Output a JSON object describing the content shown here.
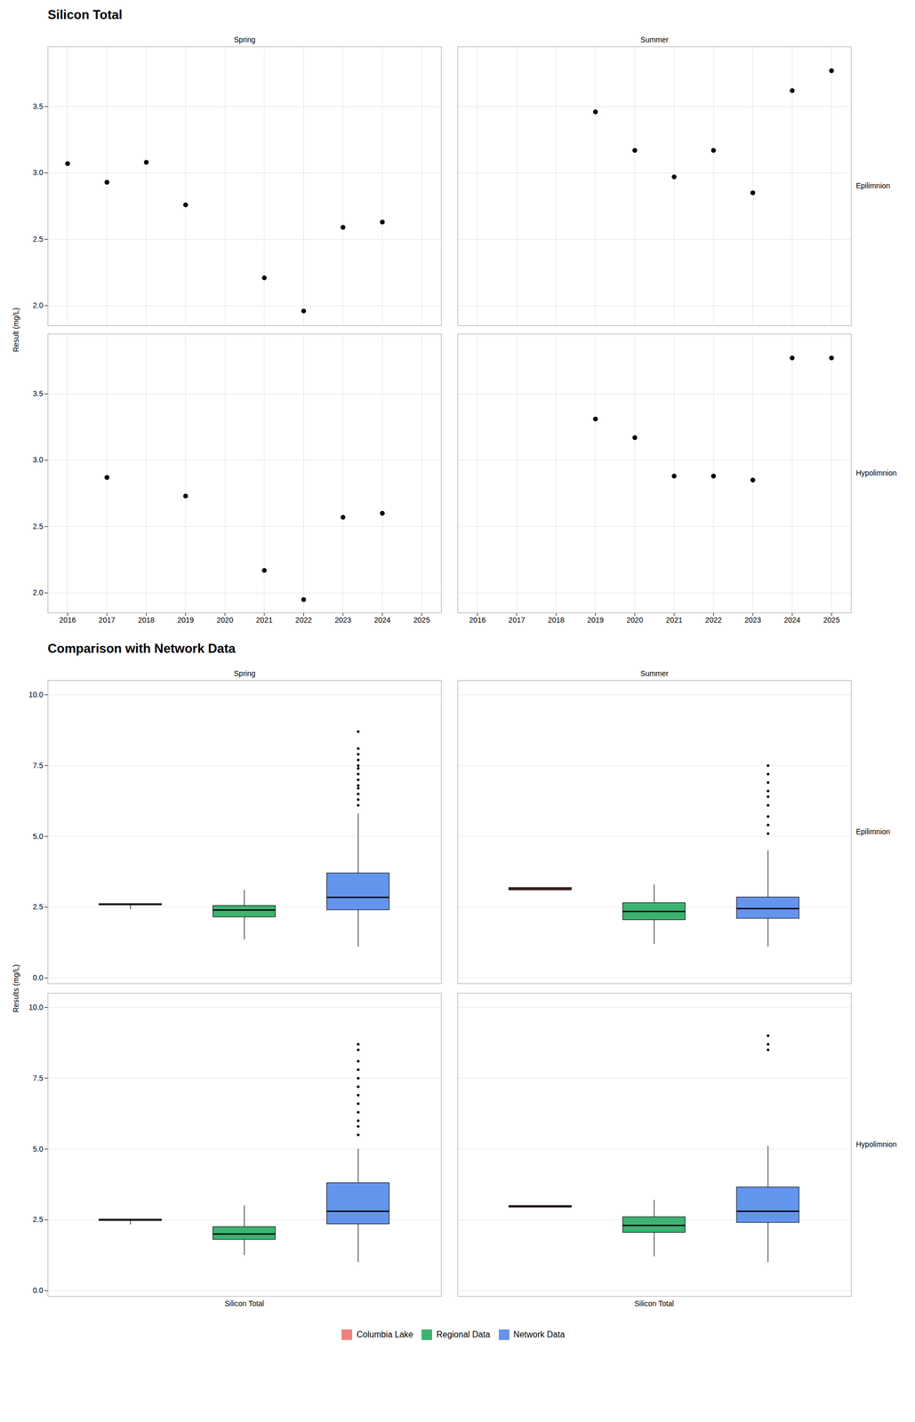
{
  "chart_data": [
    {
      "type": "scatter",
      "title": "Silicon Total",
      "ylabel": "Result (mg/L)",
      "columns": [
        "Spring",
        "Summer"
      ],
      "rows": [
        "Epilimnion",
        "Hypolimnion"
      ],
      "color": "black",
      "panels": [
        {
          "column": "Spring",
          "row": "Epilimnion",
          "x": [
            2016,
            2017,
            2018,
            2019,
            2021,
            2022,
            2023,
            2024
          ],
          "y": [
            3.07,
            2.93,
            3.08,
            2.76,
            2.21,
            1.96,
            2.59,
            2.63
          ]
        },
        {
          "column": "Summer",
          "row": "Epilimnion",
          "x": [
            2019,
            2020,
            2021,
            2022,
            2023,
            2024,
            2025
          ],
          "y": [
            3.46,
            3.17,
            2.97,
            3.17,
            2.85,
            3.62,
            3.77
          ]
        },
        {
          "column": "Spring",
          "row": "Hypolimnion",
          "x": [
            2017,
            2019,
            2021,
            2022,
            2023,
            2024
          ],
          "y": [
            2.87,
            2.73,
            2.17,
            1.95,
            2.57,
            2.6
          ]
        },
        {
          "column": "Summer",
          "row": "Hypolimnion",
          "x": [
            2019,
            2020,
            2021,
            2022,
            2023,
            2024,
            2025
          ],
          "y": [
            3.31,
            3.17,
            2.88,
            2.88,
            2.85,
            3.77,
            3.77
          ]
        }
      ],
      "xlim": [
        2015.5,
        2025.5
      ],
      "xticks": [
        2016,
        2017,
        2018,
        2019,
        2020,
        2021,
        2022,
        2023,
        2024,
        2025
      ],
      "ylim": [
        1.85,
        3.95
      ],
      "yticks": [
        {
          "value": 2,
          "label": "2.0"
        },
        2.5,
        {
          "value": 3,
          "label": "3.0"
        },
        3.5
      ],
      "grid": true
    },
    {
      "type": "box",
      "title": "Comparison with Network Data",
      "ylabel": "Results (mg/L)",
      "categories": [
        "Silicon Total"
      ],
      "columns": [
        "Spring",
        "Summer"
      ],
      "rows": [
        "Epilimnion",
        "Hypolimnion"
      ],
      "series": [
        {
          "name": "Columbia Lake",
          "color": "#F08080",
          "boxes": [
            {
              "column": "Spring",
              "row": "Epilimnion",
              "med": 2.6,
              "q1": 2.57,
              "q3": 2.62,
              "whisk_lo": 2.42,
              "whisk_hi": 2.62,
              "outliers": []
            },
            {
              "column": "Summer",
              "row": "Epilimnion",
              "med": 3.15,
              "q1": 3.1,
              "q3": 3.19,
              "whisk_lo": 3.1,
              "whisk_hi": 3.19,
              "outliers": []
            },
            {
              "column": "Spring",
              "row": "Hypolimnion",
              "med": 2.5,
              "q1": 2.47,
              "q3": 2.52,
              "whisk_lo": 2.33,
              "whisk_hi": 2.52,
              "outliers": []
            },
            {
              "column": "Summer",
              "row": "Hypolimnion",
              "med": 2.97,
              "q1": 2.94,
              "q3": 3.0,
              "whisk_lo": 2.94,
              "whisk_hi": 3.0,
              "outliers": []
            }
          ]
        },
        {
          "name": "Regional Data",
          "color": "#3CB371",
          "boxes": [
            {
              "column": "Spring",
              "row": "Epilimnion",
              "med": 2.4,
              "q1": 2.15,
              "q3": 2.55,
              "whisk_lo": 1.35,
              "whisk_hi": 3.1,
              "outliers": []
            },
            {
              "column": "Summer",
              "row": "Epilimnion",
              "med": 2.35,
              "q1": 2.05,
              "q3": 2.65,
              "whisk_lo": 1.2,
              "whisk_hi": 3.3,
              "outliers": []
            },
            {
              "column": "Spring",
              "row": "Hypolimnion",
              "med": 2.0,
              "q1": 1.8,
              "q3": 2.25,
              "whisk_lo": 1.25,
              "whisk_hi": 3.0,
              "outliers": []
            },
            {
              "column": "Summer",
              "row": "Hypolimnion",
              "med": 2.3,
              "q1": 2.05,
              "q3": 2.6,
              "whisk_lo": 1.2,
              "whisk_hi": 3.2,
              "outliers": []
            }
          ]
        },
        {
          "name": "Network Data",
          "color": "#6495ED",
          "boxes": [
            {
              "column": "Spring",
              "row": "Epilimnion",
              "med": 2.85,
              "q1": 2.4,
              "q3": 3.7,
              "whisk_lo": 1.1,
              "whisk_hi": 5.8,
              "outliers": [
                6.1,
                6.3,
                6.5,
                6.7,
                6.8,
                7.0,
                7.2,
                7.4,
                7.5,
                7.7,
                7.9,
                8.1,
                8.7
              ]
            },
            {
              "column": "Summer",
              "row": "Epilimnion",
              "med": 2.45,
              "q1": 2.1,
              "q3": 2.85,
              "whisk_lo": 1.1,
              "whisk_hi": 4.5,
              "outliers": [
                5.1,
                5.4,
                5.7,
                6.1,
                6.4,
                6.6,
                6.9,
                7.2,
                7.5
              ]
            },
            {
              "column": "Spring",
              "row": "Hypolimnion",
              "med": 2.8,
              "q1": 2.35,
              "q3": 3.8,
              "whisk_lo": 1.0,
              "whisk_hi": 5.0,
              "outliers": [
                5.5,
                5.8,
                6.0,
                6.3,
                6.6,
                6.9,
                7.2,
                7.5,
                7.8,
                8.1,
                8.5,
                8.7
              ]
            },
            {
              "column": "Summer",
              "row": "Hypolimnion",
              "med": 2.8,
              "q1": 2.4,
              "q3": 3.65,
              "whisk_lo": 1.0,
              "whisk_hi": 5.1,
              "outliers": [
                8.5,
                8.7,
                9.0
              ]
            }
          ]
        }
      ],
      "ylim": [
        -0.2,
        10.5
      ],
      "yticks": [
        {
          "value": 0,
          "label": "0.0"
        },
        2.5,
        {
          "value": 5,
          "label": "5.0"
        },
        7.5,
        {
          "value": 10,
          "label": "10.0"
        }
      ],
      "grid": "y",
      "legend": "bottom"
    }
  ]
}
